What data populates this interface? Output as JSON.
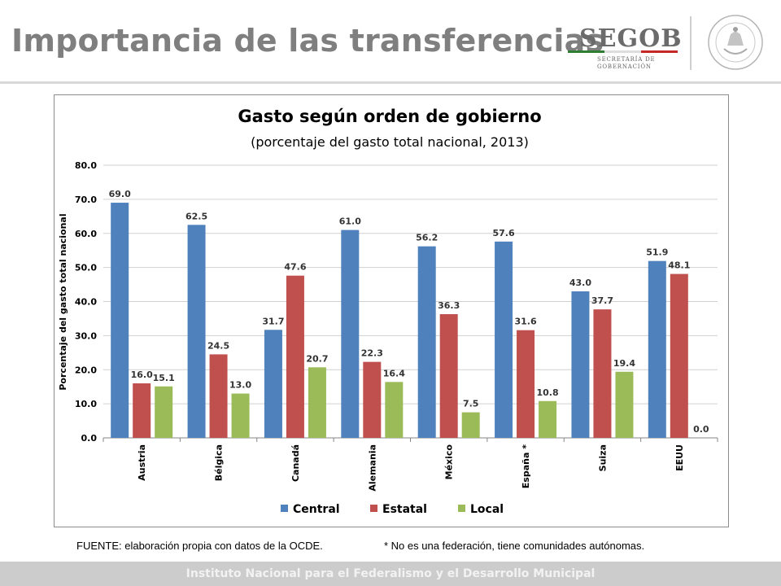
{
  "slide": {
    "title": "Importancia de las transferencias",
    "footer_source": "FUENTE: elaboración propia con datos de la OCDE.",
    "footer_note": "* No es una federación, tiene comunidades autónomas.",
    "footer_institute": "Instituto Nacional para el Federalismo y el Desarrollo Municipal"
  },
  "logo": {
    "name": "SEGOB",
    "subtitle_1": "SECRETARÍA DE",
    "subtitle_2": "GOBERNACIÓN",
    "seal_text": "ESTADOS UNIDOS MEXICANOS"
  },
  "colors": {
    "central": "#4f81bd",
    "estatal": "#c0504d",
    "local": "#9bbb59",
    "title_gray": "#7f7f7f",
    "flag_green": "#2e7d32",
    "flag_red": "#c62828"
  },
  "chart_data": {
    "type": "bar",
    "title": "Gasto según orden de gobierno",
    "subtitle": "(porcentaje del gasto total nacional, 2013)",
    "ylabel": "Porcentaje del gasto total nacional",
    "xlabel": "",
    "ylim": [
      0,
      80
    ],
    "yticks": [
      "0.0",
      "10.0",
      "20.0",
      "30.0",
      "40.0",
      "50.0",
      "60.0",
      "70.0",
      "80.0"
    ],
    "grid": true,
    "legend_position": "bottom",
    "categories": [
      "Austria",
      "Bélgica",
      "Canadá",
      "Alemania",
      "México",
      "España *",
      "Suiza",
      "EEUU"
    ],
    "series": [
      {
        "name": "Central",
        "values": [
          69.0,
          62.5,
          31.7,
          61.0,
          56.2,
          57.6,
          43.0,
          51.9
        ],
        "labels": [
          "69.0",
          "62.5",
          "31.7",
          "61.0",
          "56.2",
          "57.6",
          "43.0",
          "51.9"
        ]
      },
      {
        "name": "Estatal",
        "values": [
          16.0,
          24.5,
          47.6,
          22.3,
          36.3,
          31.6,
          37.7,
          48.1
        ],
        "labels": [
          "16.0",
          "24.5",
          "47.6",
          "22.3",
          "36.3",
          "31.6",
          "37.7",
          "48.1"
        ]
      },
      {
        "name": "Local",
        "values": [
          15.1,
          13.0,
          20.7,
          16.4,
          7.5,
          10.8,
          19.4,
          0.0
        ],
        "labels": [
          "15.1",
          "13.0",
          "20.7",
          "16.4",
          "7.5",
          "10.8",
          "19.4",
          "0.0"
        ]
      }
    ]
  }
}
